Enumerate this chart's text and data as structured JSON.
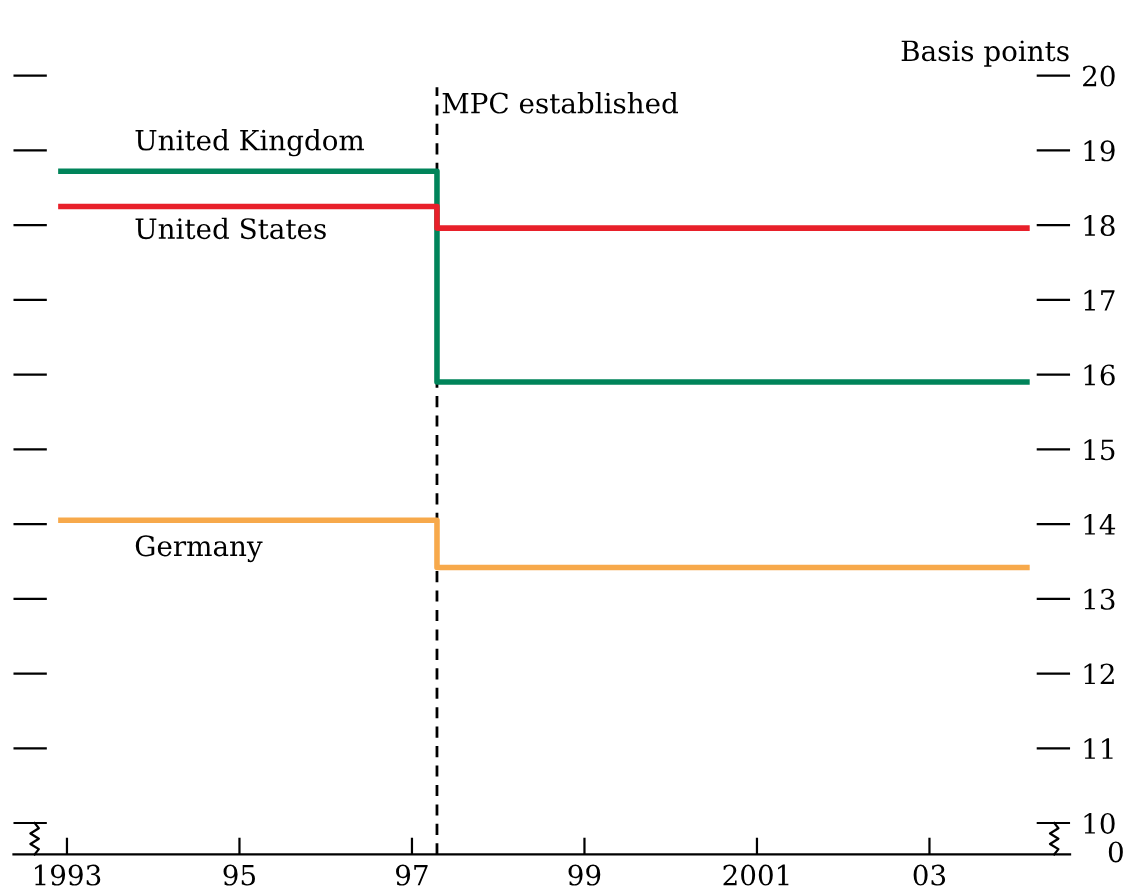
{
  "chart_data": {
    "type": "step",
    "ylabel": "Basis points",
    "series": [
      {
        "name": "United Kingdom",
        "color": "#00845a",
        "x": [
          1992.93,
          1997.29,
          2004.13
        ],
        "values": [
          18.72,
          15.9,
          15.9
        ]
      },
      {
        "name": "United States",
        "color": "#e8202a",
        "x": [
          1992.93,
          1997.29,
          2004.13
        ],
        "values": [
          18.25,
          17.96,
          17.96
        ]
      },
      {
        "name": "Germany",
        "color": "#f7a94b",
        "x": [
          1992.93,
          1997.29,
          2004.13
        ],
        "values": [
          14.05,
          13.42,
          13.42
        ]
      }
    ],
    "xlim": [
      1992.38,
      2004.63
    ],
    "xticks": [
      {
        "value": 1993,
        "label": "1993"
      },
      {
        "value": 1995,
        "label": "95"
      },
      {
        "value": 1997,
        "label": "97"
      },
      {
        "value": 1999,
        "label": "99"
      },
      {
        "value": 2001,
        "label": "2001"
      },
      {
        "value": 2003,
        "label": "03"
      }
    ],
    "ylim": [
      9.58,
      20
    ],
    "yticks": [
      10,
      11,
      12,
      13,
      14,
      15,
      16,
      17,
      18,
      19,
      20
    ],
    "ref_lines": [
      {
        "axis": "x",
        "value": 1997.29,
        "label": "MPC established",
        "color": "#000000",
        "line_style": "dashed"
      }
    ],
    "annotations": [
      "0"
    ],
    "grid": false,
    "legend": false
  }
}
